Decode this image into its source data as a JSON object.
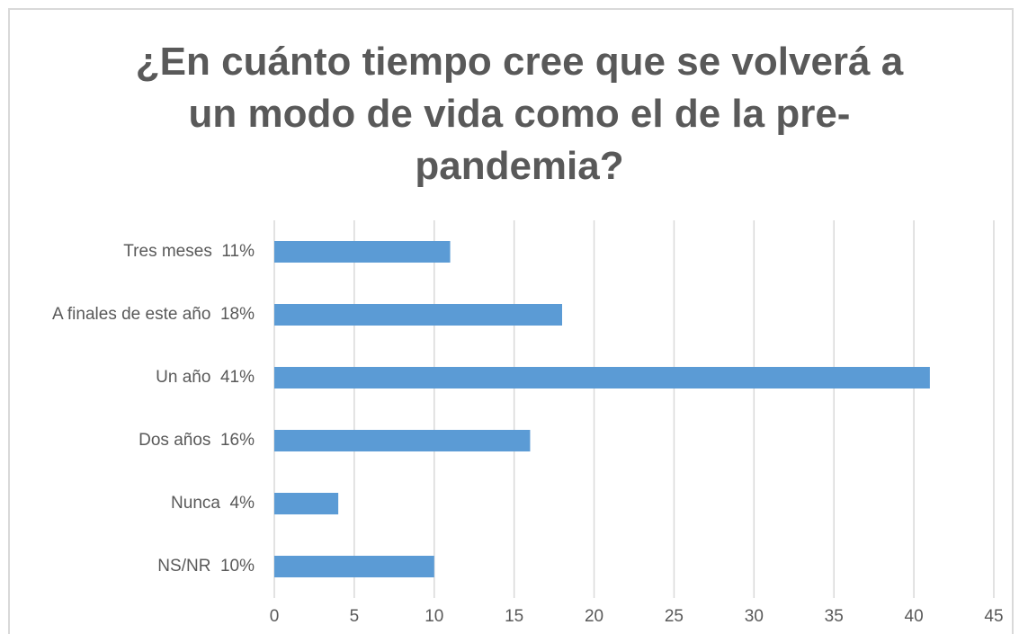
{
  "chart_data": {
    "type": "barh",
    "title": "¿En cuánto tiempo cree que se volverá a un modo de vida como el de la pre-pandemia?",
    "categories": [
      "Tres meses  11%",
      "A finales de este año  18%",
      "Un año  41%",
      "Dos años  16%",
      "Nunca  4%",
      "NS/NR  10%"
    ],
    "values": [
      11,
      18,
      41,
      16,
      4,
      10
    ],
    "color": "#5b9bd5",
    "xlim": [
      0,
      45
    ],
    "xticks": [
      0,
      5,
      10,
      15,
      20,
      25,
      30,
      35,
      40,
      45
    ],
    "grid": true
  }
}
